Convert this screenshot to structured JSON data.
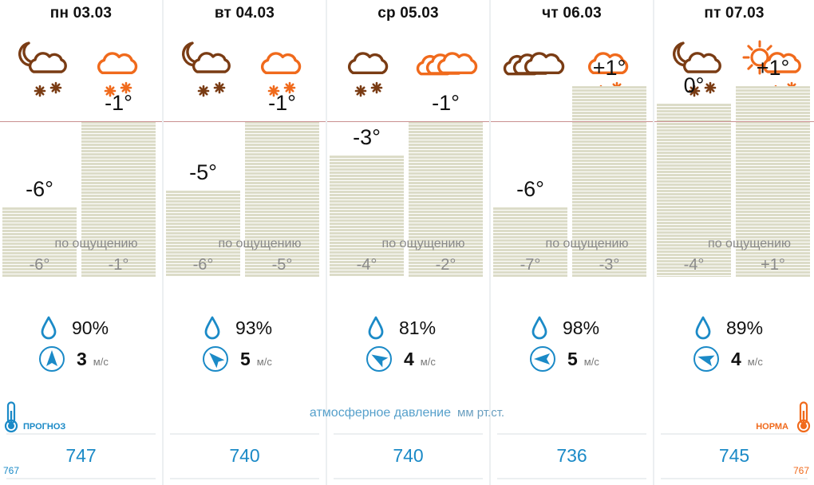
{
  "days": [
    {
      "date": "пн 03.03",
      "night_temp": "-6°",
      "day_temp": "-1°",
      "night_val": -6,
      "day_val": -1,
      "feels_night": "-6°",
      "feels_day": "-1°",
      "humidity": "90%",
      "wind_speed": "3",
      "wind_deg": 0,
      "pressure": "747",
      "night_icon": "moon-cloud-snow-icon",
      "day_icon": "cloud-snow-icon"
    },
    {
      "date": "вт 04.03",
      "night_temp": "-5°",
      "day_temp": "-1°",
      "night_val": -5,
      "day_val": -1,
      "feels_night": "-6°",
      "feels_day": "-5°",
      "humidity": "93%",
      "wind_speed": "5",
      "wind_deg": 315,
      "pressure": "740",
      "night_icon": "moon-cloud-snow-icon",
      "day_icon": "cloud-snow-icon"
    },
    {
      "date": "ср 05.03",
      "night_temp": "-3°",
      "day_temp": "-1°",
      "night_val": -3,
      "day_val": -1,
      "feels_night": "-4°",
      "feels_day": "-2°",
      "humidity": "81%",
      "wind_speed": "4",
      "wind_deg": 300,
      "pressure": "740",
      "night_icon": "cloud-snow-icon",
      "day_icon": "overcast-icon"
    },
    {
      "date": "чт 06.03",
      "night_temp": "-6°",
      "day_temp": "+1°",
      "night_val": -6,
      "day_val": 1,
      "feels_night": "-7°",
      "feels_day": "-3°",
      "humidity": "98%",
      "wind_speed": "5",
      "wind_deg": 270,
      "pressure": "736",
      "night_icon": "overcast-icon",
      "day_icon": "cloud-snow-icon"
    },
    {
      "date": "пт 07.03",
      "night_temp": "0°",
      "day_temp": "+1°",
      "night_val": 0,
      "day_val": 1,
      "feels_night": "-4°",
      "feels_day": "+1°",
      "humidity": "89%",
      "wind_speed": "4",
      "wind_deg": 285,
      "pressure": "745",
      "night_icon": "moon-cloud-snow-icon",
      "day_icon": "sun-cloud-snow-icon"
    }
  ],
  "feels_label": "по ощущению",
  "wind_unit": "м/с",
  "pressure_title": "атмосферное давление",
  "pressure_units": "мм рт.ст.",
  "forecast_label": "ПРОГНОЗ",
  "norm_label": "НОРМА",
  "pressure_norm_left": "767",
  "pressure_norm_right": "767",
  "norm_temp": -1,
  "colors": {
    "night": "#7a3c14",
    "day": "#f06a1c",
    "accent": "#1b8ac7",
    "bar": "#dcdcc8",
    "norm_line": "#c98f8f"
  }
}
